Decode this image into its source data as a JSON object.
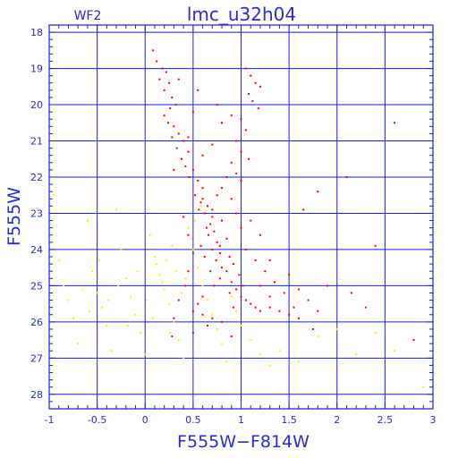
{
  "chart_data": {
    "type": "scatter",
    "title": "lmc_u32h04",
    "subtitle": "WF2",
    "xlabel": "F555W−F814W",
    "ylabel": "F555W",
    "xlim": [
      -1,
      3
    ],
    "ylim": [
      28.4,
      17.8
    ],
    "y_inverted": true,
    "grid": true,
    "xticks": [
      "-1",
      "-0.5",
      "0",
      "0.5",
      "1",
      "1.5",
      "2",
      "2.5",
      "3"
    ],
    "yticks": [
      "18",
      "19",
      "20",
      "21",
      "22",
      "23",
      "24",
      "25",
      "26",
      "27",
      "28"
    ],
    "colors": {
      "axis": "#1d1de0",
      "red_points": "#ff0000",
      "yellow_points": "#ffee00"
    },
    "series": [
      {
        "color": "red",
        "points": [
          [
            0.08,
            18.5
          ],
          [
            0.12,
            18.8
          ],
          [
            0.18,
            19.0
          ],
          [
            0.22,
            19.1
          ],
          [
            0.15,
            19.3
          ],
          [
            0.25,
            19.4
          ],
          [
            0.2,
            19.6
          ],
          [
            0.28,
            19.8
          ],
          [
            0.32,
            20.0
          ],
          [
            0.26,
            20.1
          ],
          [
            0.2,
            20.3
          ],
          [
            0.24,
            20.5
          ],
          [
            0.3,
            20.6
          ],
          [
            0.35,
            20.8
          ],
          [
            0.28,
            20.9
          ],
          [
            0.4,
            21.0
          ],
          [
            0.33,
            21.2
          ],
          [
            0.45,
            21.3
          ],
          [
            0.38,
            21.5
          ],
          [
            0.42,
            21.7
          ],
          [
            0.5,
            21.8
          ],
          [
            0.46,
            22.0
          ],
          [
            0.55,
            22.1
          ],
          [
            0.6,
            22.3
          ],
          [
            0.52,
            22.5
          ],
          [
            0.58,
            22.7
          ],
          [
            0.65,
            22.8
          ],
          [
            0.62,
            23.0
          ],
          [
            0.7,
            23.1
          ],
          [
            0.68,
            23.3
          ],
          [
            0.72,
            23.5
          ],
          [
            0.66,
            23.6
          ],
          [
            0.75,
            23.8
          ],
          [
            0.7,
            24.0
          ],
          [
            0.78,
            24.1
          ],
          [
            0.74,
            24.3
          ],
          [
            0.8,
            24.5
          ],
          [
            0.85,
            24.6
          ],
          [
            0.78,
            24.8
          ],
          [
            0.9,
            24.9
          ],
          [
            0.95,
            25.1
          ],
          [
            0.88,
            25.2
          ],
          [
            1.0,
            25.3
          ],
          [
            1.05,
            25.4
          ],
          [
            0.92,
            25.6
          ],
          [
            1.1,
            25.5
          ],
          [
            1.15,
            25.6
          ],
          [
            1.2,
            25.7
          ],
          [
            1.3,
            25.6
          ],
          [
            1.4,
            25.7
          ],
          [
            1.5,
            25.8
          ],
          [
            1.55,
            25.6
          ],
          [
            1.6,
            25.9
          ],
          [
            0.6,
            25.8
          ],
          [
            0.7,
            25.9
          ],
          [
            0.8,
            26.0
          ],
          [
            0.65,
            26.1
          ],
          [
            1.05,
            19.0
          ],
          [
            1.1,
            19.2
          ],
          [
            1.15,
            19.4
          ],
          [
            1.2,
            19.5
          ],
          [
            1.08,
            19.7
          ],
          [
            1.12,
            19.9
          ],
          [
            1.18,
            20.1
          ],
          [
            1.0,
            20.4
          ],
          [
            1.05,
            20.7
          ],
          [
            0.95,
            21.0
          ],
          [
            1.0,
            21.3
          ],
          [
            0.9,
            21.6
          ],
          [
            0.85,
            22.0
          ],
          [
            0.8,
            22.3
          ],
          [
            0.9,
            22.6
          ],
          [
            0.95,
            23.0
          ],
          [
            1.0,
            23.4
          ],
          [
            0.85,
            23.7
          ],
          [
            1.05,
            24.0
          ],
          [
            1.15,
            24.3
          ],
          [
            1.25,
            24.6
          ],
          [
            1.35,
            24.9
          ],
          [
            1.45,
            25.2
          ],
          [
            1.2,
            25.0
          ],
          [
            1.3,
            25.3
          ],
          [
            0.75,
            22.5
          ],
          [
            0.7,
            22.9
          ],
          [
            0.8,
            23.2
          ],
          [
            0.78,
            23.9
          ],
          [
            0.88,
            24.2
          ],
          [
            0.92,
            24.4
          ],
          [
            0.98,
            24.7
          ],
          [
            1.02,
            25.0
          ],
          [
            0.68,
            24.6
          ],
          [
            0.72,
            25.0
          ],
          [
            0.6,
            25.3
          ],
          [
            0.55,
            25.5
          ],
          [
            0.5,
            25.7
          ],
          [
            0.62,
            24.2
          ],
          [
            0.58,
            23.9
          ],
          [
            0.64,
            23.4
          ],
          [
            0.56,
            22.9
          ],
          [
            0.6,
            22.6
          ],
          [
            1.65,
            22.9
          ],
          [
            1.8,
            22.4
          ],
          [
            2.1,
            22.0
          ],
          [
            2.15,
            25.2
          ],
          [
            2.3,
            25.6
          ],
          [
            2.4,
            23.9
          ],
          [
            2.6,
            20.5
          ],
          [
            2.8,
            26.5
          ],
          [
            1.9,
            25.0
          ],
          [
            1.75,
            26.2
          ],
          [
            0.3,
            21.8
          ],
          [
            0.45,
            20.9
          ],
          [
            0.5,
            20.2
          ],
          [
            0.55,
            19.6
          ],
          [
            0.35,
            19.3
          ],
          [
            0.6,
            21.4
          ],
          [
            0.7,
            21.1
          ],
          [
            0.8,
            20.5
          ],
          [
            0.75,
            20.0
          ],
          [
            0.9,
            20.3
          ],
          [
            1.3,
            24.3
          ],
          [
            1.5,
            24.7
          ],
          [
            1.6,
            25.1
          ],
          [
            1.7,
            25.4
          ],
          [
            1.8,
            25.7
          ],
          [
            1.1,
            23.2
          ],
          [
            1.2,
            23.6
          ],
          [
            1.0,
            22.1
          ],
          [
            0.95,
            21.9
          ],
          [
            1.08,
            21.5
          ],
          [
            0.4,
            23.1
          ],
          [
            0.45,
            23.6
          ],
          [
            0.5,
            24.1
          ],
          [
            0.45,
            24.6
          ],
          [
            0.42,
            25.0
          ],
          [
            0.35,
            25.4
          ],
          [
            0.3,
            25.9
          ],
          [
            0.28,
            26.4
          ],
          [
            0.5,
            26.3
          ],
          [
            0.9,
            26.4
          ]
        ]
      },
      {
        "color": "yellow",
        "points": [
          [
            -0.95,
            22.5
          ],
          [
            -0.9,
            24.3
          ],
          [
            -0.85,
            25.0
          ],
          [
            -0.8,
            25.4
          ],
          [
            -0.75,
            25.9
          ],
          [
            -0.7,
            26.6
          ],
          [
            -0.6,
            23.2
          ],
          [
            -0.55,
            24.6
          ],
          [
            -0.5,
            25.2
          ],
          [
            -0.45,
            25.6
          ],
          [
            -0.4,
            26.1
          ],
          [
            -0.35,
            26.8
          ],
          [
            -0.3,
            22.9
          ],
          [
            -0.25,
            24.0
          ],
          [
            -0.2,
            24.8
          ],
          [
            -0.15,
            25.3
          ],
          [
            -0.1,
            25.8
          ],
          [
            -0.05,
            26.3
          ],
          [
            0.0,
            26.9
          ],
          [
            0.05,
            23.6
          ],
          [
            0.1,
            24.2
          ],
          [
            0.15,
            24.7
          ],
          [
            0.2,
            25.1
          ],
          [
            0.25,
            25.5
          ],
          [
            0.3,
            26.0
          ],
          [
            0.35,
            26.5
          ],
          [
            0.4,
            27.0
          ],
          [
            0.45,
            23.4
          ],
          [
            0.5,
            24.0
          ],
          [
            0.55,
            24.5
          ],
          [
            0.6,
            25.0
          ],
          [
            0.65,
            25.4
          ],
          [
            0.7,
            25.8
          ],
          [
            0.75,
            26.2
          ],
          [
            0.8,
            26.6
          ],
          [
            0.85,
            27.1
          ],
          [
            0.9,
            25.3
          ],
          [
            0.95,
            25.7
          ],
          [
            1.0,
            26.1
          ],
          [
            1.1,
            26.5
          ],
          [
            1.2,
            26.9
          ],
          [
            1.3,
            27.2
          ],
          [
            1.4,
            26.8
          ],
          [
            1.6,
            27.1
          ],
          [
            1.8,
            26.4
          ],
          [
            2.0,
            26.2
          ],
          [
            2.2,
            26.9
          ],
          [
            2.4,
            26.3
          ],
          [
            2.6,
            26.8
          ],
          [
            2.9,
            27.8
          ],
          [
            0.12,
            24.4
          ],
          [
            0.18,
            24.9
          ],
          [
            0.22,
            24.3
          ],
          [
            0.28,
            23.9
          ],
          [
            0.32,
            24.6
          ],
          [
            0.38,
            25.2
          ],
          [
            0.42,
            24.8
          ],
          [
            0.48,
            23.7
          ],
          [
            0.52,
            23.2
          ],
          [
            0.58,
            22.8
          ],
          [
            -0.65,
            25.1
          ],
          [
            -0.58,
            25.7
          ],
          [
            -0.48,
            24.3
          ],
          [
            -0.38,
            25.4
          ],
          [
            -0.28,
            25.0
          ],
          [
            -0.18,
            26.1
          ],
          [
            -0.08,
            24.6
          ],
          [
            0.02,
            25.4
          ],
          [
            0.08,
            25.9
          ],
          [
            0.26,
            26.3
          ]
        ]
      }
    ]
  }
}
